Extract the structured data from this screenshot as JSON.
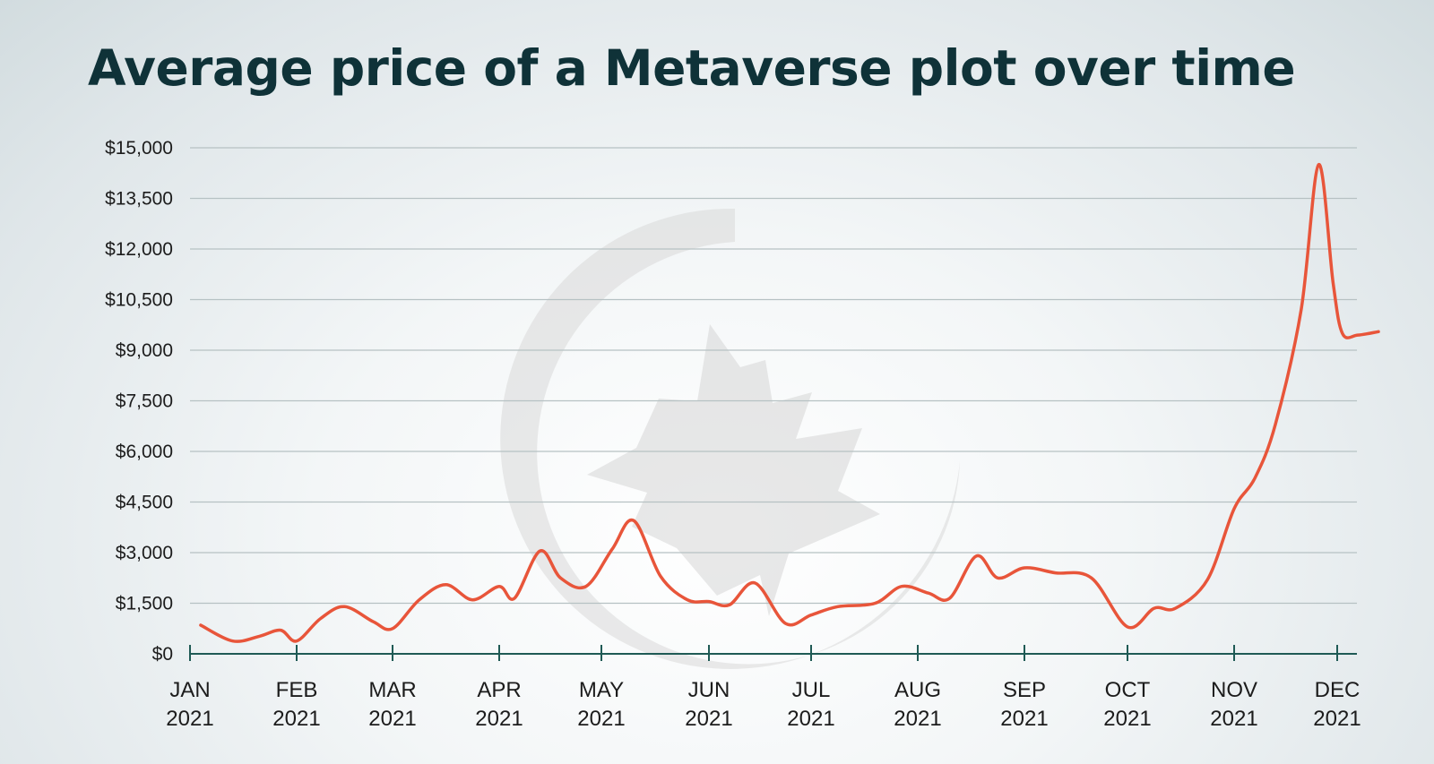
{
  "chart_data": {
    "type": "line",
    "title": "Average price of a Metaverse plot over time",
    "xlabel": "",
    "ylabel": "",
    "ylim": [
      0,
      15000
    ],
    "y_ticks": [
      "$0",
      "$1,500",
      "$3,000",
      "$4,500",
      "$6,000",
      "$7,500",
      "$9,000",
      "$10,500",
      "$12,000",
      "$13,500",
      "$15,000"
    ],
    "x_ticks": [
      {
        "month": "JAN",
        "year": "2021"
      },
      {
        "month": "FEB",
        "year": "2021"
      },
      {
        "month": "MAR",
        "year": "2021"
      },
      {
        "month": "APR",
        "year": "2021"
      },
      {
        "month": "MAY",
        "year": "2021"
      },
      {
        "month": "JUN",
        "year": "2021"
      },
      {
        "month": "JUL",
        "year": "2021"
      },
      {
        "month": "AUG",
        "year": "2021"
      },
      {
        "month": "SEP",
        "year": "2021"
      },
      {
        "month": "OCT",
        "year": "2021"
      },
      {
        "month": "NOV",
        "year": "2021"
      },
      {
        "month": "DEC",
        "year": "2021"
      }
    ],
    "grid": true,
    "series": [
      {
        "color": "#e8553a",
        "points": [
          [
            0.1,
            850
          ],
          [
            0.4,
            380
          ],
          [
            0.65,
            520
          ],
          [
            0.85,
            700
          ],
          [
            1.0,
            380
          ],
          [
            1.25,
            1050
          ],
          [
            1.5,
            1400
          ],
          [
            1.8,
            950
          ],
          [
            2.0,
            750
          ],
          [
            2.25,
            1600
          ],
          [
            2.5,
            2050
          ],
          [
            2.75,
            1600
          ],
          [
            3.0,
            2000
          ],
          [
            3.15,
            1650
          ],
          [
            3.4,
            3050
          ],
          [
            3.6,
            2250
          ],
          [
            3.85,
            2000
          ],
          [
            4.1,
            3100
          ],
          [
            4.3,
            3950
          ],
          [
            4.55,
            2300
          ],
          [
            4.8,
            1600
          ],
          [
            5.0,
            1550
          ],
          [
            5.2,
            1450
          ],
          [
            5.45,
            2100
          ],
          [
            5.75,
            900
          ],
          [
            6.0,
            1150
          ],
          [
            6.25,
            1400
          ],
          [
            6.6,
            1500
          ],
          [
            6.85,
            2000
          ],
          [
            7.1,
            1800
          ],
          [
            7.3,
            1650
          ],
          [
            7.55,
            2900
          ],
          [
            7.75,
            2250
          ],
          [
            8.0,
            2550
          ],
          [
            8.3,
            2400
          ],
          [
            8.65,
            2250
          ],
          [
            9.0,
            800
          ],
          [
            9.25,
            1350
          ],
          [
            9.45,
            1350
          ],
          [
            9.75,
            2200
          ],
          [
            10.0,
            4300
          ],
          [
            10.2,
            5200
          ],
          [
            10.4,
            6800
          ],
          [
            10.65,
            10200
          ],
          [
            10.82,
            14500
          ],
          [
            10.96,
            11000
          ],
          [
            11.05,
            9500
          ],
          [
            11.2,
            9450
          ],
          [
            11.4,
            9550
          ]
        ]
      }
    ]
  }
}
